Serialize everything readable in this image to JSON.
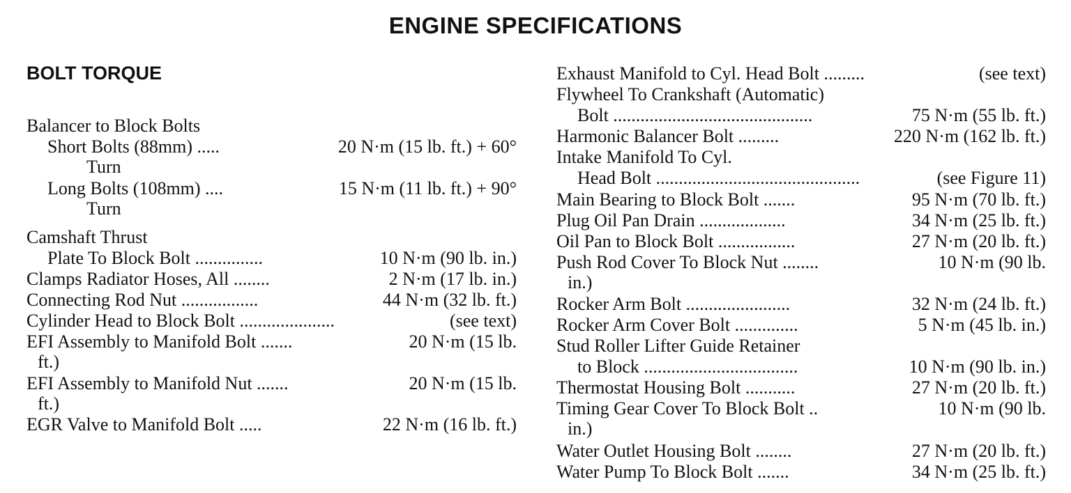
{
  "title": "ENGINE SPECIFICATIONS",
  "section": "BOLT TORQUE",
  "left": [
    {
      "indent": 0,
      "label": "Balancer to Block Bolts",
      "value": ""
    },
    {
      "indent": 1,
      "label": "Short Bolts (88mm) .....",
      "value": "20 N·m (15 lb. ft.) + 60°"
    },
    {
      "indent": 3,
      "label": "Turn",
      "value": ""
    },
    {
      "indent": 1,
      "label": "Long Bolts (108mm) ....",
      "value": "15 N·m (11 lb. ft.) + 90°"
    },
    {
      "indent": 3,
      "label": "Turn",
      "value": ""
    },
    {
      "indent": 0,
      "label": "Camshaft Thrust",
      "value": ""
    },
    {
      "indent": 1,
      "label": "Plate To Block Bolt ...............",
      "value": "10 N·m (90 lb. in.)"
    },
    {
      "indent": 0,
      "label": "Clamps Radiator Hoses, All ........",
      "value": "2 N·m (17 lb. in.)"
    },
    {
      "indent": 0,
      "label": "Connecting Rod Nut .................",
      "value": "44 N·m (32 lb. ft.)"
    },
    {
      "indent": 0,
      "label": "Cylinder Head to Block Bolt .....................",
      "value": "(see text)"
    },
    {
      "indent": 0,
      "label": "EFI Assembly to Manifold Bolt .......",
      "value": "20 N·m (15 lb."
    },
    {
      "indent": 2,
      "label": "ft.)",
      "value": ""
    },
    {
      "indent": 0,
      "label": "EFI Assembly to Manifold Nut .......",
      "value": "20 N·m (15 lb."
    },
    {
      "indent": 2,
      "label": "ft.)",
      "value": ""
    },
    {
      "indent": 0,
      "label": "EGR Valve to Manifold Bolt .....",
      "value": "22 N·m (16 lb. ft.)"
    }
  ],
  "right": [
    {
      "indent": 0,
      "label": "Exhaust Manifold to Cyl. Head Bolt .........",
      "value": "(see text)"
    },
    {
      "indent": 0,
      "label": "Flywheel To Crankshaft (Automatic)",
      "value": ""
    },
    {
      "indent": 1,
      "label": "Bolt ............................................",
      "value": "75 N·m (55 lb. ft.)"
    },
    {
      "indent": 0,
      "label": "Harmonic Balancer Bolt .........",
      "value": "220 N·m (162 lb. ft.)"
    },
    {
      "indent": 0,
      "label": "Intake Manifold To Cyl.",
      "value": ""
    },
    {
      "indent": 1,
      "label": "Head Bolt .............................................",
      "value": "(see Figure 11)"
    },
    {
      "indent": 0,
      "label": "Main Bearing to Block Bolt .......",
      "value": "95 N·m (70 lb. ft.)"
    },
    {
      "indent": 0,
      "label": "Plug Oil Pan Drain ...................",
      "value": "34 N·m (25 lb. ft.)"
    },
    {
      "indent": 0,
      "label": "Oil Pan to Block Bolt .................",
      "value": "27 N·m (20 lb. ft.)"
    },
    {
      "indent": 0,
      "label": "Push Rod Cover To Block Nut ........",
      "value": "10 N·m (90 lb."
    },
    {
      "indent": 2,
      "label": "in.)",
      "value": ""
    },
    {
      "indent": 0,
      "label": "Rocker Arm Bolt .......................",
      "value": "32 N·m (24 lb. ft.)"
    },
    {
      "indent": 0,
      "label": "Rocker Arm Cover Bolt ..............",
      "value": "5 N·m (45 lb. in.)"
    },
    {
      "indent": 0,
      "label": "Stud Roller Lifter Guide Retainer",
      "value": ""
    },
    {
      "indent": 1,
      "label": "to Block ..................................",
      "value": "10 N·m (90 lb. in.)"
    },
    {
      "indent": 0,
      "label": "Thermostat Housing Bolt ...........",
      "value": "27 N·m (20 lb. ft.)"
    },
    {
      "indent": 0,
      "label": "Timing Gear Cover To Block Bolt ..",
      "value": "10 N·m (90 lb."
    },
    {
      "indent": 2,
      "label": "in.)",
      "value": ""
    },
    {
      "indent": 0,
      "label": "Water Outlet Housing Bolt ........",
      "value": "27 N·m (20 lb. ft.)"
    },
    {
      "indent": 0,
      "label": "Water Pump To Block Bolt .......",
      "value": "34 N·m (25 lb. ft.)"
    }
  ]
}
